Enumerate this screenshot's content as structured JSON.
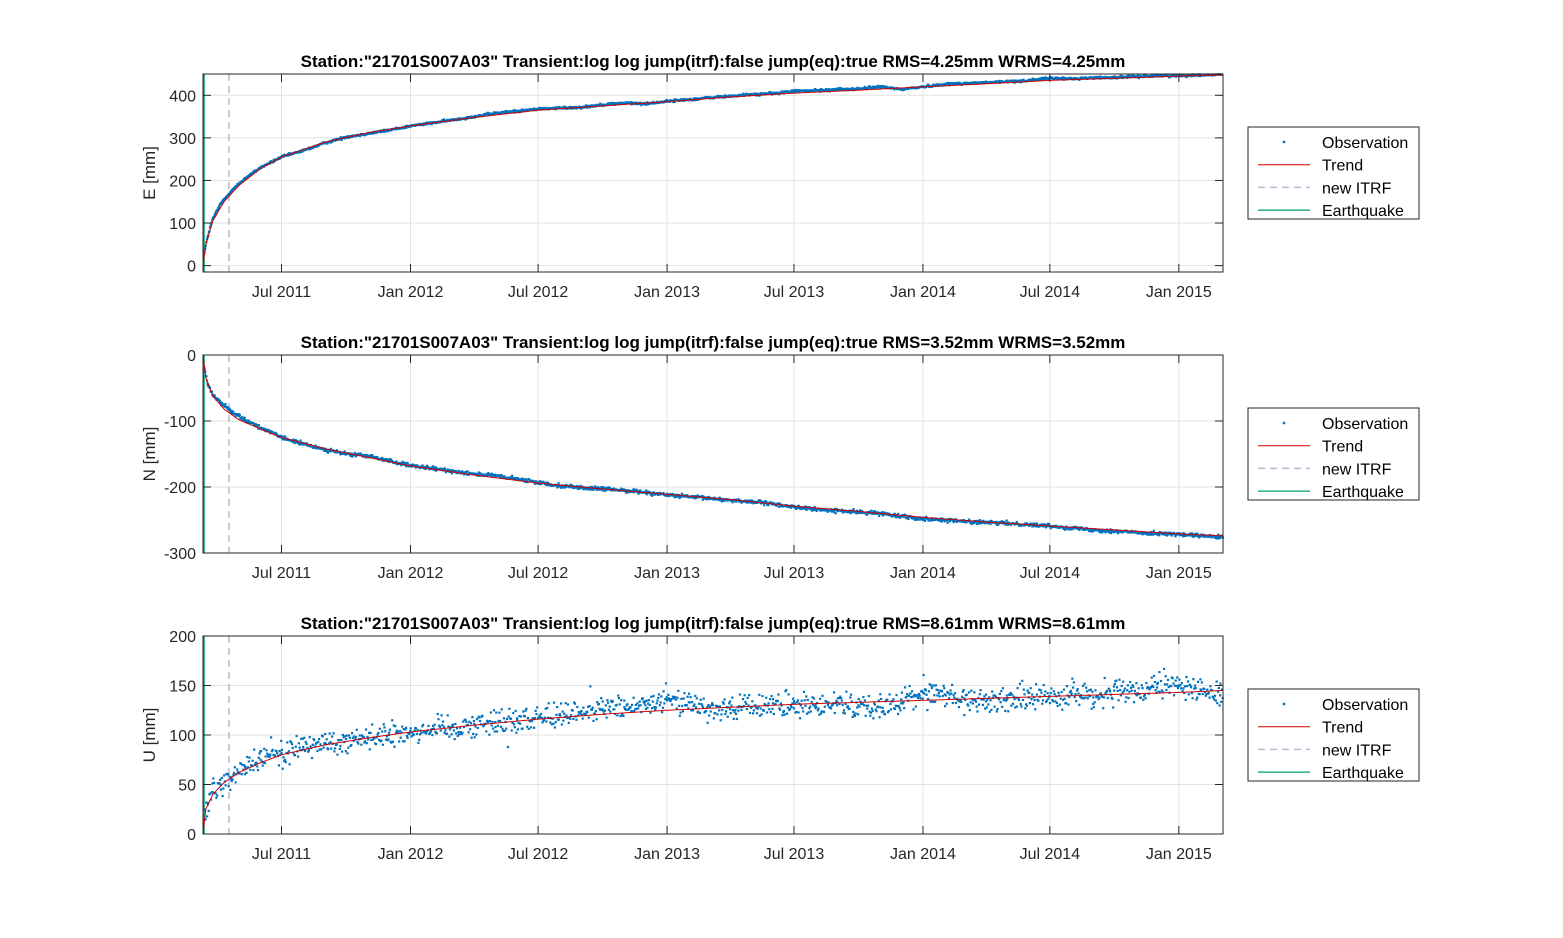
{
  "colors": {
    "observation": "#0072BD",
    "trend": "#D00000",
    "new_itrf": "#B8B8D0",
    "earthquake": "#00A060",
    "grid": "#E2E2E2",
    "axis": "#262626"
  },
  "chart_data": [
    {
      "type": "scatter",
      "title": "Station:\"21701S007A03\" Transient:log log jump(itrf):false  jump(eq):true  RMS=4.25mm WRMS=4.25mm",
      "xlabel": "",
      "ylabel": "E [mm]",
      "xlim": [
        "2011-03-11",
        "2015-03-05"
      ],
      "ylim": [
        -15,
        450
      ],
      "xticks": [
        {
          "date": "2011-07-01",
          "label": "Jul 2011"
        },
        {
          "date": "2012-01-01",
          "label": "Jan 2012"
        },
        {
          "date": "2012-07-01",
          "label": "Jul 2012"
        },
        {
          "date": "2013-01-01",
          "label": "Jan 2013"
        },
        {
          "date": "2013-07-01",
          "label": "Jul 2013"
        },
        {
          "date": "2014-01-01",
          "label": "Jan 2014"
        },
        {
          "date": "2014-07-01",
          "label": "Jul 2014"
        },
        {
          "date": "2015-01-01",
          "label": "Jan 2015"
        }
      ],
      "yticks": [
        0,
        100,
        200,
        300,
        400
      ],
      "grid": true,
      "legend_position": "outside-right",
      "new_itrf_date": "2011-04-17",
      "earthquake_date": "2011-03-11",
      "series": [
        {
          "name": "Observation",
          "kind": "points",
          "x": [
            "2011-03-13",
            "2011-03-18",
            "2011-03-25",
            "2011-04-05",
            "2011-04-20",
            "2011-05-10",
            "2011-06-01",
            "2011-07-01",
            "2011-08-01",
            "2011-09-01",
            "2011-10-01",
            "2011-11-01",
            "2011-12-01",
            "2012-01-01",
            "2012-02-01",
            "2012-03-01",
            "2012-04-01",
            "2012-05-01",
            "2012-06-01",
            "2012-07-01",
            "2012-08-01",
            "2012-09-01",
            "2012-10-01",
            "2012-11-01",
            "2012-12-01",
            "2013-01-01",
            "2013-02-01",
            "2013-03-01",
            "2013-04-01",
            "2013-05-01",
            "2013-06-01",
            "2013-07-01",
            "2013-08-01",
            "2013-09-01",
            "2013-10-01",
            "2013-11-01",
            "2013-12-01",
            "2014-01-01",
            "2014-02-01",
            "2014-03-01",
            "2014-04-01",
            "2014-05-01",
            "2014-06-01",
            "2014-07-01",
            "2014-08-01",
            "2014-09-01",
            "2014-10-01",
            "2014-11-01",
            "2014-12-01",
            "2015-01-01",
            "2015-02-01",
            "2015-03-01"
          ],
          "y": [
            30,
            70,
            110,
            145,
            175,
            205,
            230,
            255,
            270,
            288,
            302,
            310,
            318,
            328,
            335,
            342,
            350,
            358,
            363,
            368,
            370,
            372,
            378,
            382,
            380,
            386,
            390,
            394,
            398,
            402,
            404,
            410,
            411,
            414,
            415,
            420,
            414,
            420,
            426,
            428,
            430,
            432,
            435,
            440,
            439,
            441,
            442,
            444,
            446,
            446,
            448,
            449
          ]
        },
        {
          "name": "Trend",
          "kind": "line",
          "x": [
            "2011-03-11",
            "2011-03-15",
            "2011-03-25",
            "2011-04-10",
            "2011-05-01",
            "2011-06-01",
            "2011-07-01",
            "2011-09-01",
            "2011-11-01",
            "2012-01-01",
            "2012-04-01",
            "2012-07-01",
            "2012-10-01",
            "2013-01-01",
            "2013-04-01",
            "2013-07-01",
            "2013-10-01",
            "2014-01-01",
            "2014-04-01",
            "2014-07-01",
            "2014-10-01",
            "2015-01-01",
            "2015-03-05"
          ],
          "y": [
            0,
            50,
            105,
            150,
            188,
            228,
            255,
            290,
            312,
            328,
            348,
            365,
            375,
            385,
            396,
            405,
            412,
            420,
            427,
            435,
            440,
            445,
            448
          ]
        }
      ]
    },
    {
      "type": "scatter",
      "title": "Station:\"21701S007A03\" Transient:log log jump(itrf):false  jump(eq):true  RMS=3.52mm WRMS=3.52mm",
      "xlabel": "",
      "ylabel": "N [mm]",
      "xlim": [
        "2011-03-11",
        "2015-03-05"
      ],
      "ylim": [
        -300,
        0
      ],
      "xticks": [
        {
          "date": "2011-07-01",
          "label": "Jul 2011"
        },
        {
          "date": "2012-01-01",
          "label": "Jan 2012"
        },
        {
          "date": "2012-07-01",
          "label": "Jul 2012"
        },
        {
          "date": "2013-01-01",
          "label": "Jan 2013"
        },
        {
          "date": "2013-07-01",
          "label": "Jul 2013"
        },
        {
          "date": "2014-01-01",
          "label": "Jan 2014"
        },
        {
          "date": "2014-07-01",
          "label": "Jul 2014"
        },
        {
          "date": "2015-01-01",
          "label": "Jan 2015"
        }
      ],
      "yticks": [
        -300,
        -200,
        -100,
        0
      ],
      "grid": true,
      "legend_position": "outside-right",
      "new_itrf_date": "2011-04-17",
      "earthquake_date": "2011-03-11",
      "series": [
        {
          "name": "Observation",
          "kind": "points",
          "x": [
            "2011-03-13",
            "2011-03-18",
            "2011-03-25",
            "2011-04-05",
            "2011-04-20",
            "2011-05-10",
            "2011-06-01",
            "2011-07-01",
            "2011-08-01",
            "2011-09-01",
            "2011-10-01",
            "2011-11-01",
            "2011-12-01",
            "2012-01-01",
            "2012-02-01",
            "2012-03-01",
            "2012-04-01",
            "2012-05-01",
            "2012-06-01",
            "2012-07-01",
            "2012-08-01",
            "2012-09-01",
            "2012-10-01",
            "2012-11-01",
            "2012-12-01",
            "2013-01-01",
            "2013-02-01",
            "2013-03-01",
            "2013-04-01",
            "2013-05-01",
            "2013-06-01",
            "2013-07-01",
            "2013-08-01",
            "2013-09-01",
            "2013-10-01",
            "2013-11-01",
            "2013-12-01",
            "2014-01-01",
            "2014-02-01",
            "2014-03-01",
            "2014-04-01",
            "2014-05-01",
            "2014-06-01",
            "2014-07-01",
            "2014-08-01",
            "2014-09-01",
            "2014-10-01",
            "2014-11-01",
            "2014-12-01",
            "2015-01-01",
            "2015-02-01",
            "2015-03-01"
          ],
          "y": [
            -20,
            -45,
            -60,
            -72,
            -85,
            -98,
            -110,
            -125,
            -135,
            -143,
            -150,
            -153,
            -160,
            -168,
            -172,
            -176,
            -180,
            -183,
            -188,
            -193,
            -198,
            -201,
            -203,
            -205,
            -208,
            -212,
            -215,
            -217,
            -220,
            -222,
            -226,
            -230,
            -234,
            -236,
            -238,
            -240,
            -244,
            -248,
            -250,
            -252,
            -254,
            -255,
            -257,
            -259,
            -262,
            -265,
            -267,
            -269,
            -270,
            -272,
            -274,
            -276
          ]
        },
        {
          "name": "Trend",
          "kind": "line",
          "x": [
            "2011-03-11",
            "2011-03-15",
            "2011-03-25",
            "2011-04-10",
            "2011-05-01",
            "2011-06-01",
            "2011-07-01",
            "2011-09-01",
            "2011-11-01",
            "2012-01-01",
            "2012-04-01",
            "2012-07-01",
            "2012-10-01",
            "2013-01-01",
            "2013-04-01",
            "2013-07-01",
            "2013-10-01",
            "2014-01-01",
            "2014-04-01",
            "2014-07-01",
            "2014-10-01",
            "2015-01-01",
            "2015-03-05"
          ],
          "y": [
            0,
            -35,
            -62,
            -82,
            -98,
            -112,
            -125,
            -142,
            -155,
            -168,
            -182,
            -194,
            -203,
            -211,
            -219,
            -229,
            -237,
            -246,
            -253,
            -259,
            -265,
            -271,
            -274
          ]
        }
      ]
    },
    {
      "type": "scatter",
      "title": "Station:\"21701S007A03\" Transient:log log jump(itrf):false  jump(eq):true  RMS=8.61mm WRMS=8.61mm",
      "xlabel": "",
      "ylabel": "U [mm]",
      "xlim": [
        "2011-03-11",
        "2015-03-05"
      ],
      "ylim": [
        0,
        200
      ],
      "xticks": [
        {
          "date": "2011-07-01",
          "label": "Jul 2011"
        },
        {
          "date": "2012-01-01",
          "label": "Jan 2012"
        },
        {
          "date": "2012-07-01",
          "label": "Jul 2012"
        },
        {
          "date": "2013-01-01",
          "label": "Jan 2013"
        },
        {
          "date": "2013-07-01",
          "label": "Jul 2013"
        },
        {
          "date": "2014-01-01",
          "label": "Jan 2014"
        },
        {
          "date": "2014-07-01",
          "label": "Jul 2014"
        },
        {
          "date": "2015-01-01",
          "label": "Jan 2015"
        }
      ],
      "yticks": [
        0,
        50,
        100,
        150,
        200
      ],
      "grid": true,
      "legend_position": "outside-right",
      "new_itrf_date": "2011-04-17",
      "earthquake_date": "2011-03-11",
      "series": [
        {
          "name": "Observation",
          "kind": "points",
          "x": [
            "2011-03-13",
            "2011-03-18",
            "2011-03-25",
            "2011-04-05",
            "2011-04-20",
            "2011-05-10",
            "2011-06-01",
            "2011-07-01",
            "2011-08-01",
            "2011-09-01",
            "2011-10-01",
            "2011-11-01",
            "2011-12-01",
            "2012-01-01",
            "2012-02-01",
            "2012-03-01",
            "2012-04-01",
            "2012-05-01",
            "2012-06-01",
            "2012-07-01",
            "2012-08-01",
            "2012-09-01",
            "2012-10-01",
            "2012-11-01",
            "2012-12-01",
            "2013-01-01",
            "2013-02-01",
            "2013-03-01",
            "2013-04-01",
            "2013-05-01",
            "2013-06-01",
            "2013-07-01",
            "2013-08-01",
            "2013-09-01",
            "2013-10-01",
            "2013-11-01",
            "2013-12-01",
            "2014-01-01",
            "2014-02-01",
            "2014-03-01",
            "2014-04-01",
            "2014-05-01",
            "2014-06-01",
            "2014-07-01",
            "2014-08-01",
            "2014-09-01",
            "2014-10-01",
            "2014-11-01",
            "2014-12-01",
            "2015-01-01",
            "2015-02-01",
            "2015-03-01"
          ],
          "y": [
            15,
            30,
            42,
            50,
            55,
            68,
            75,
            82,
            88,
            92,
            96,
            97,
            100,
            104,
            106,
            108,
            111,
            113,
            115,
            117,
            121,
            124,
            126,
            128,
            130,
            135,
            133,
            129,
            126,
            128,
            132,
            127,
            131,
            133,
            130,
            128,
            132,
            143,
            141,
            137,
            134,
            136,
            138,
            139,
            142,
            138,
            145,
            141,
            148,
            150,
            146,
            140
          ]
        },
        {
          "name": "Trend",
          "kind": "line",
          "x": [
            "2011-03-11",
            "2011-03-15",
            "2011-03-25",
            "2011-04-10",
            "2011-05-01",
            "2011-06-01",
            "2011-07-01",
            "2011-09-01",
            "2011-11-01",
            "2012-01-01",
            "2012-04-01",
            "2012-07-01",
            "2012-10-01",
            "2013-01-01",
            "2013-04-01",
            "2013-07-01",
            "2013-10-01",
            "2014-01-01",
            "2014-04-01",
            "2014-07-01",
            "2014-10-01",
            "2015-01-01",
            "2015-03-05"
          ],
          "y": [
            0,
            25,
            40,
            52,
            62,
            72,
            80,
            90,
            97,
            103,
            110,
            116,
            121,
            125,
            128,
            131,
            133,
            135,
            137,
            139,
            141,
            143,
            145
          ]
        }
      ]
    }
  ],
  "legend": {
    "entries": [
      {
        "label": "Observation",
        "style": "marker"
      },
      {
        "label": "Trend",
        "style": "solid-red"
      },
      {
        "label": "new ITRF",
        "style": "dashed-lavender"
      },
      {
        "label": "Earthquake",
        "style": "solid-green"
      }
    ]
  }
}
